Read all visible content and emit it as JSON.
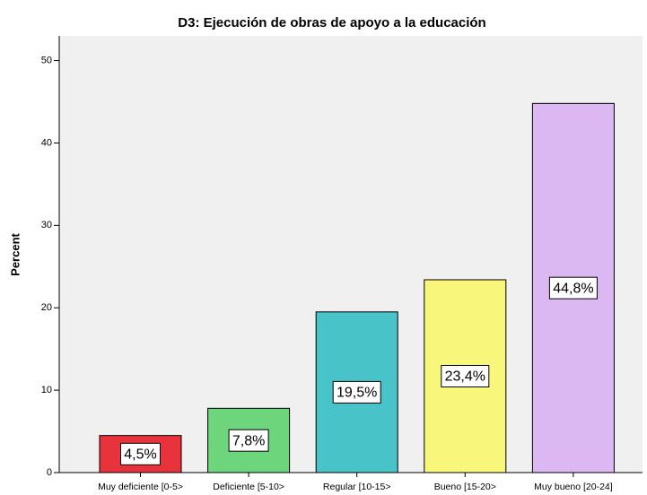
{
  "chart_data": {
    "type": "bar",
    "title": "D3: Ejecución de obras de apoyo a la educación",
    "y_label": "Percent",
    "categories": [
      "Muy deficiente [0-5>",
      "Deficiente [5-10>",
      "Regular [10-15>",
      "Bueno [15-20>",
      "Muy bueno [20-24]"
    ],
    "values": [
      4.5,
      7.8,
      19.5,
      23.4,
      44.8
    ],
    "value_labels": [
      "4,5%",
      "7,8%",
      "19,5%",
      "23,4%",
      "44,8%"
    ],
    "colors": [
      "#e8323c",
      "#6dd67c",
      "#48c4c8",
      "#f8f77c",
      "#dcb8f2"
    ],
    "ylim": [
      0,
      53
    ],
    "yticks": [
      0,
      10,
      20,
      30,
      40,
      50
    ]
  }
}
